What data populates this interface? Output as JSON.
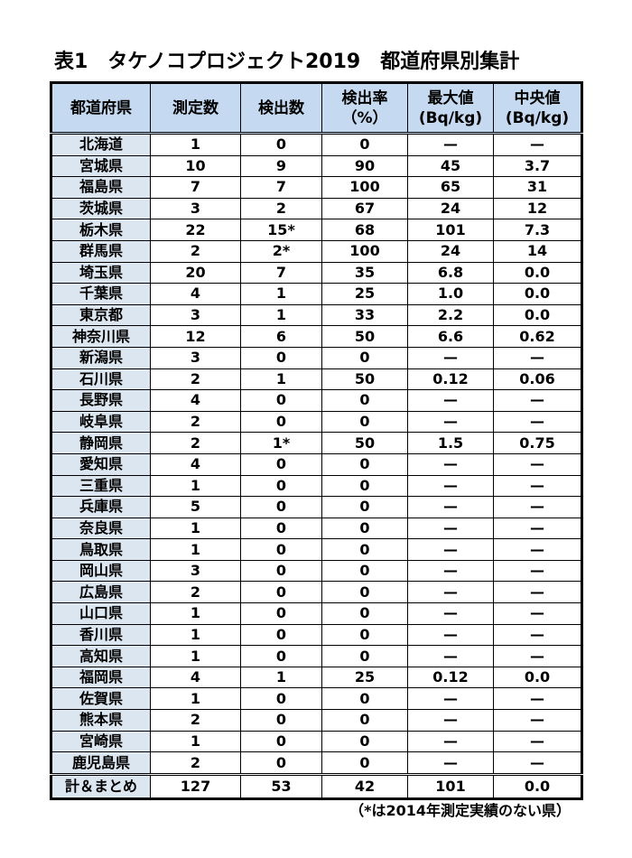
{
  "title": "表1　タケノコプロジェクト2019　都道府県別集計",
  "table": {
    "header": [
      [
        "都道府県"
      ],
      [
        "測定数"
      ],
      [
        "検出数"
      ],
      [
        "検出率",
        "（%）"
      ],
      [
        "最大値",
        "(Bq/kg)"
      ],
      [
        "中央値",
        "(Bq/kg)"
      ]
    ],
    "rows": [
      [
        "北海道",
        "1",
        "0",
        "0",
        "—",
        "—"
      ],
      [
        "宮城県",
        "10",
        "9",
        "90",
        "45",
        "3.7"
      ],
      [
        "福島県",
        "7",
        "7",
        "100",
        "65",
        "31"
      ],
      [
        "茨城県",
        "3",
        "2",
        "67",
        "24",
        "12"
      ],
      [
        "栃木県",
        "22",
        "15*",
        "68",
        "101",
        "7.3"
      ],
      [
        "群馬県",
        "2",
        "2*",
        "100",
        "24",
        "14"
      ],
      [
        "埼玉県",
        "20",
        "7",
        "35",
        "6.8",
        "0.0"
      ],
      [
        "千葉県",
        "4",
        "1",
        "25",
        "1.0",
        "0.0"
      ],
      [
        "東京都",
        "3",
        "1",
        "33",
        "2.2",
        "0.0"
      ],
      [
        "神奈川県",
        "12",
        "6",
        "50",
        "6.6",
        "0.62"
      ],
      [
        "新潟県",
        "3",
        "0",
        "0",
        "—",
        "—"
      ],
      [
        "石川県",
        "2",
        "1",
        "50",
        "0.12",
        "0.06"
      ],
      [
        "長野県",
        "4",
        "0",
        "0",
        "—",
        "—"
      ],
      [
        "岐阜県",
        "2",
        "0",
        "0",
        "—",
        "—"
      ],
      [
        "静岡県",
        "2",
        "1*",
        "50",
        "1.5",
        "0.75"
      ],
      [
        "愛知県",
        "4",
        "0",
        "0",
        "—",
        "—"
      ],
      [
        "三重県",
        "1",
        "0",
        "0",
        "—",
        "—"
      ],
      [
        "兵庫県",
        "5",
        "0",
        "0",
        "—",
        "—"
      ],
      [
        "奈良県",
        "1",
        "0",
        "0",
        "—",
        "—"
      ],
      [
        "鳥取県",
        "1",
        "0",
        "0",
        "—",
        "—"
      ],
      [
        "岡山県",
        "3",
        "0",
        "0",
        "—",
        "—"
      ],
      [
        "広島県",
        "2",
        "0",
        "0",
        "—",
        "—"
      ],
      [
        "山口県",
        "1",
        "0",
        "0",
        "—",
        "—"
      ],
      [
        "香川県",
        "1",
        "0",
        "0",
        "—",
        "—"
      ],
      [
        "高知県",
        "1",
        "0",
        "0",
        "—",
        "—"
      ],
      [
        "福岡県",
        "4",
        "1",
        "25",
        "0.12",
        "0.0"
      ],
      [
        "佐賀県",
        "1",
        "0",
        "0",
        "—",
        "—"
      ],
      [
        "熊本県",
        "2",
        "0",
        "0",
        "—",
        "—"
      ],
      [
        "宮崎県",
        "1",
        "0",
        "0",
        "—",
        "—"
      ],
      [
        "鹿児島県",
        "2",
        "0",
        "0",
        "—",
        "—"
      ]
    ],
    "total": [
      "計＆まとめ",
      "127",
      "53",
      "42",
      "101",
      "0.0"
    ]
  },
  "footnote": "（*は2014年測定実績のない県）"
}
